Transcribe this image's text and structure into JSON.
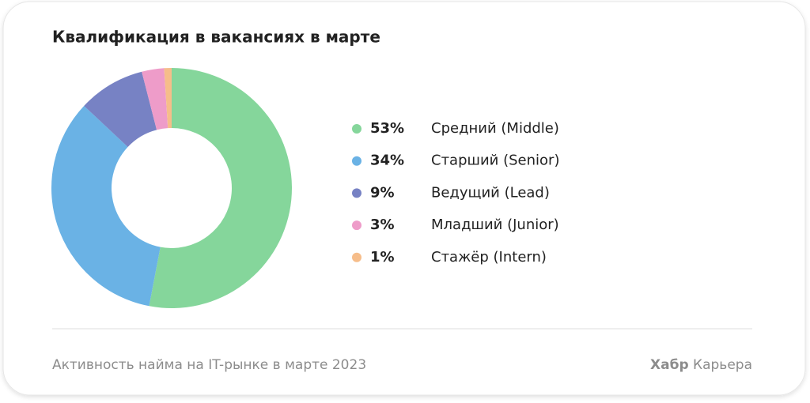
{
  "chart_data": {
    "type": "pie",
    "donut": true,
    "legend": "right",
    "title": "Квалификация в вакансиях в марте",
    "categories": [
      "Средний (Middle)",
      "Старший (Senior)",
      "Ведущий (Lead)",
      "Младший (Junior)",
      "Стажёр (Intern)"
    ],
    "values": [
      53,
      34,
      9,
      3,
      1
    ],
    "value_labels": [
      "53%",
      "34%",
      "9%",
      "3%",
      "1%"
    ],
    "colors": [
      "#85d69b",
      "#6ab2e5",
      "#7782c4",
      "#ee9cc9",
      "#f6bd8a"
    ]
  },
  "footer": {
    "caption": "Активность найма на IT-рынке в марте 2023",
    "brand": "Хабр",
    "brand_suffix": "Карьера"
  }
}
